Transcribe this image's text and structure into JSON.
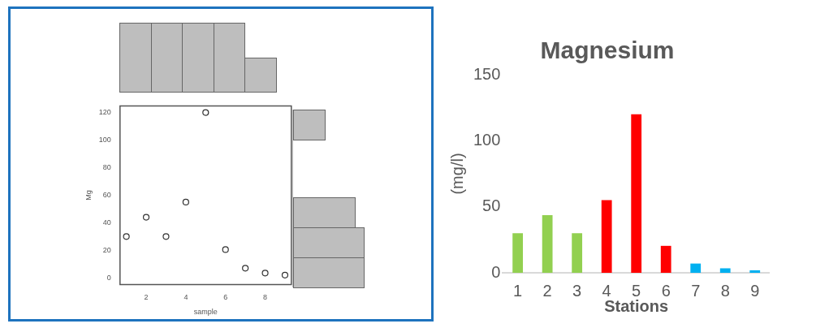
{
  "chart_data": [
    {
      "type": "scatter",
      "xlabel": "sample",
      "ylabel": "Mg",
      "x": [
        1,
        2,
        3,
        4,
        5,
        6,
        7,
        8,
        9
      ],
      "values": [
        30,
        44,
        30,
        55,
        120,
        20.5,
        7,
        3.5,
        2
      ],
      "xlim": [
        0.68,
        9.32
      ],
      "ylim": [
        -4.8,
        124.8
      ],
      "xticks": [
        2,
        4,
        6,
        8
      ],
      "yticks": [
        0,
        20,
        40,
        60,
        80,
        100,
        120
      ],
      "marker": "circle",
      "color": "#333333",
      "grid": false
    },
    {
      "type": "bar",
      "title": "Magnesium",
      "xlabel": "Stations",
      "ylabel": "(mg/l)",
      "categories": [
        "1",
        "2",
        "3",
        "4",
        "5",
        "6",
        "7",
        "8",
        "9"
      ],
      "values": [
        30,
        43.6,
        30,
        55,
        120,
        20.4,
        7,
        3.4,
        1.9
      ],
      "colors": [
        "#92d050",
        "#92d050",
        "#92d050",
        "#ff0000",
        "#ff0000",
        "#ff0000",
        "#00b0f0",
        "#00b0f0",
        "#00b0f0"
      ],
      "ylim": [
        0,
        150
      ],
      "yticks": [
        0,
        50,
        100,
        150
      ],
      "grid": false
    }
  ]
}
